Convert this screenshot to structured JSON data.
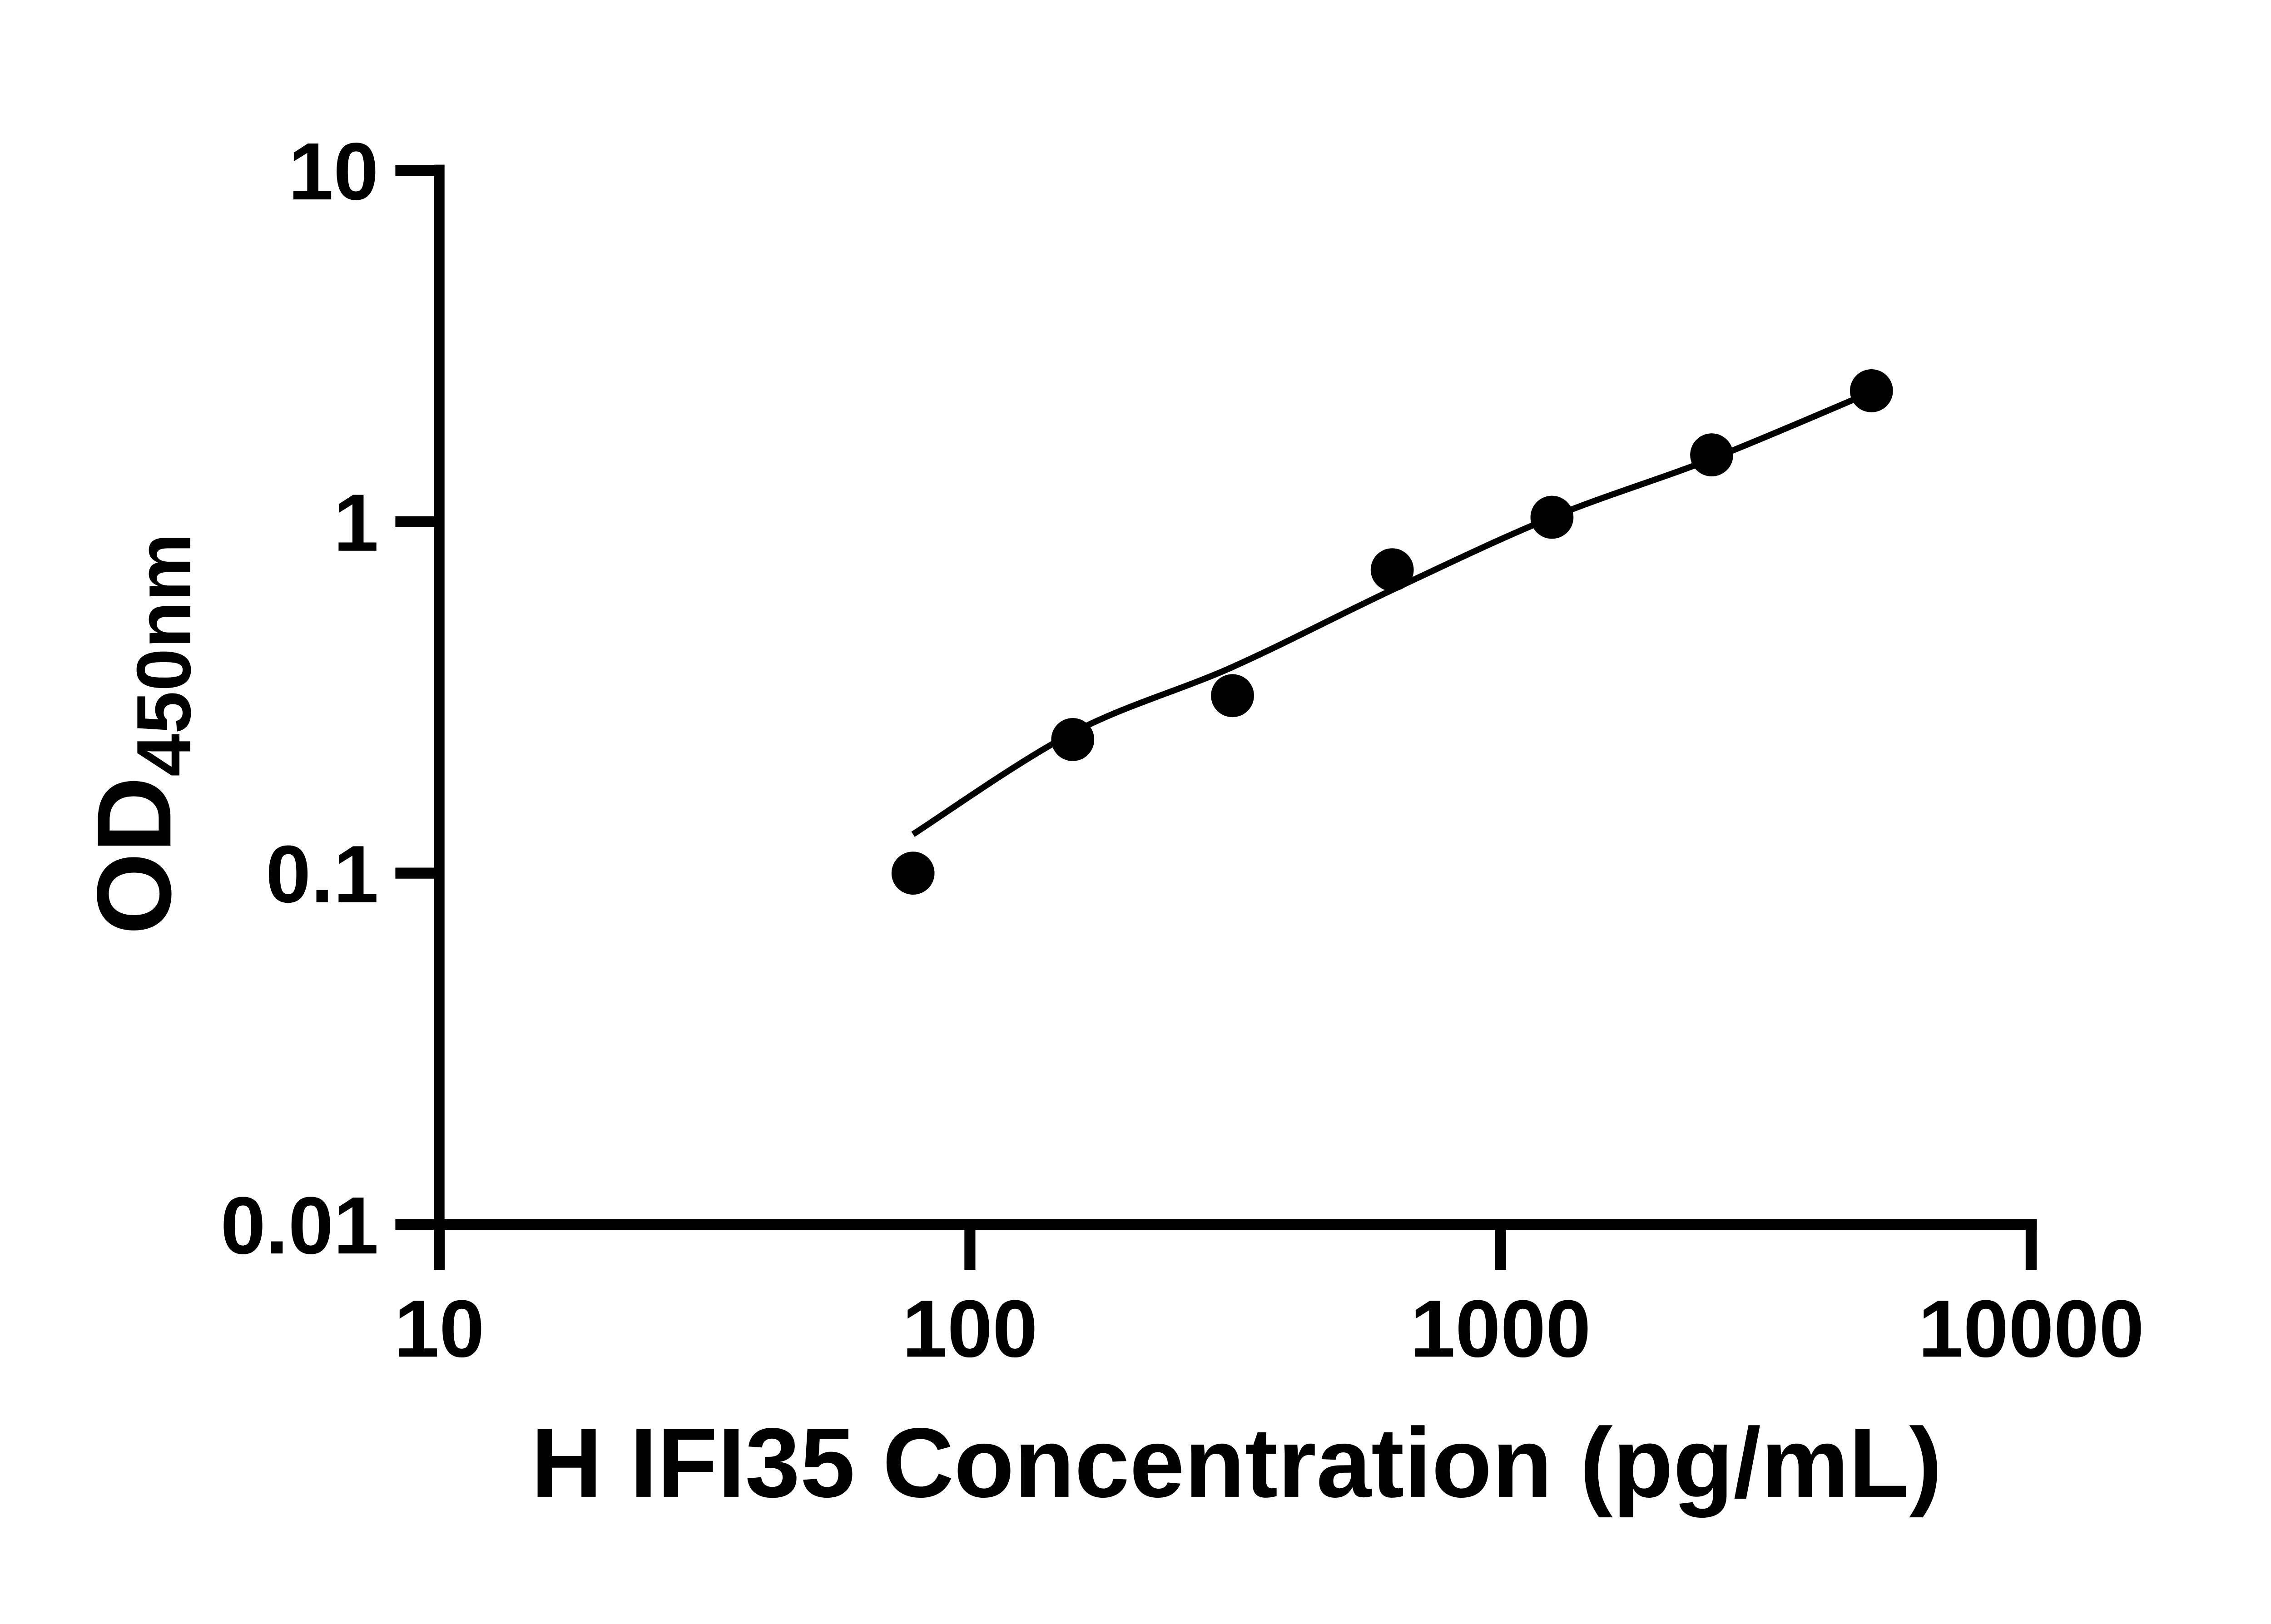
{
  "figure": {
    "background_color": "#ffffff",
    "ink_color": "#000000"
  },
  "chart_data": {
    "type": "scatter",
    "title": "",
    "xlabel": "H IFI35 Concentration (pg/mL)",
    "ylabel_main": "OD",
    "ylabel_sub": "450nm",
    "x_scale": "log10",
    "y_scale": "log10",
    "xlim": [
      10,
      10000
    ],
    "ylim": [
      0.01,
      10
    ],
    "grid": false,
    "legend": false,
    "x_ticks": [
      {
        "value": 10,
        "label": "10"
      },
      {
        "value": 100,
        "label": "100"
      },
      {
        "value": 1000,
        "label": "1000"
      },
      {
        "value": 10000,
        "label": "10000"
      }
    ],
    "y_ticks": [
      {
        "value": 10,
        "label": "10"
      },
      {
        "value": 1,
        "label": "1"
      },
      {
        "value": 0.1,
        "label": "0.1"
      },
      {
        "value": 0.01,
        "label": "0.01"
      }
    ],
    "marker": {
      "shape": "circle",
      "color": "#000000"
    },
    "points": [
      {
        "x": 78.125,
        "y": 0.1
      },
      {
        "x": 156.25,
        "y": 0.24
      },
      {
        "x": 312.5,
        "y": 0.32
      },
      {
        "x": 625,
        "y": 0.73
      },
      {
        "x": 1250,
        "y": 1.03
      },
      {
        "x": 2500,
        "y": 1.55
      },
      {
        "x": 5000,
        "y": 2.36
      }
    ],
    "fit_curve": [
      {
        "x": 78.125,
        "y": 0.129
      },
      {
        "x": 156.25,
        "y": 0.251
      },
      {
        "x": 312.5,
        "y": 0.386
      },
      {
        "x": 625,
        "y": 0.64
      },
      {
        "x": 1250,
        "y": 1.03
      },
      {
        "x": 2500,
        "y": 1.51
      },
      {
        "x": 5000,
        "y": 2.34
      }
    ]
  }
}
